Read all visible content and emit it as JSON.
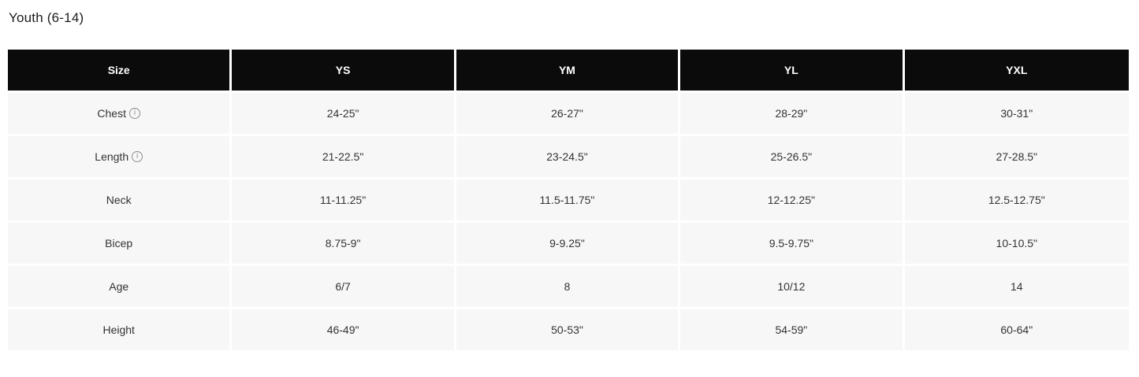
{
  "page": {
    "title": "Youth (6-14)"
  },
  "icons": {
    "info_icon_glyph": "i"
  },
  "colors": {
    "header_bg": "#0b0b0b",
    "header_text": "#ffffff",
    "row_bg": "#f7f7f7",
    "cell_text": "#333333",
    "gap": "#ffffff",
    "info_icon": "#8d8d8d"
  },
  "table": {
    "columns": [
      "Size",
      "YS",
      "YM",
      "YL",
      "YXL"
    ],
    "rows": [
      {
        "label": "Chest",
        "has_info": true,
        "values": [
          "24-25\"",
          "26-27\"",
          "28-29\"",
          "30-31\""
        ]
      },
      {
        "label": "Length",
        "has_info": true,
        "values": [
          "21-22.5\"",
          "23-24.5\"",
          "25-26.5\"",
          "27-28.5\""
        ]
      },
      {
        "label": "Neck",
        "has_info": false,
        "values": [
          "11-11.25\"",
          "11.5-11.75\"",
          "12-12.25\"",
          "12.5-12.75\""
        ]
      },
      {
        "label": "Bicep",
        "has_info": false,
        "values": [
          "8.75-9\"",
          "9-9.25\"",
          "9.5-9.75\"",
          "10-10.5\""
        ]
      },
      {
        "label": "Age",
        "has_info": false,
        "values": [
          "6/7",
          "8",
          "10/12",
          "14"
        ]
      },
      {
        "label": "Height",
        "has_info": false,
        "values": [
          "46-49\"",
          "50-53\"",
          "54-59\"",
          "60-64\""
        ]
      }
    ]
  }
}
